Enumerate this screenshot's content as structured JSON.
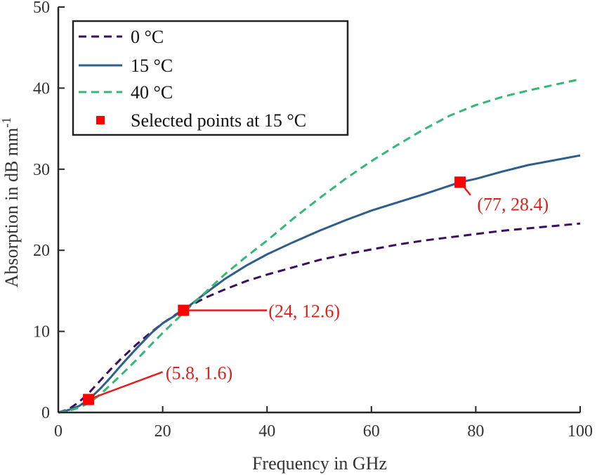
{
  "chart_data": {
    "type": "line",
    "xlabel": "Frequency in GHz",
    "ylabel": "Absorption in dB mm",
    "ylabel_superscript": "-1",
    "xlim": [
      0,
      100
    ],
    "ylim": [
      0,
      50
    ],
    "xticks": [
      "0",
      "20",
      "40",
      "60",
      "80",
      "100"
    ],
    "yticks": [
      "0",
      "10",
      "20",
      "30",
      "40",
      "50"
    ],
    "grid": false,
    "legend_position": "top-left",
    "series": [
      {
        "name": "0 °C",
        "style": "dashed",
        "color": "#3b0f5f",
        "x": [
          0,
          2,
          4,
          6,
          8,
          10,
          12,
          15,
          18,
          20,
          24,
          28,
          32,
          36,
          40,
          45,
          50,
          55,
          60,
          65,
          70,
          75,
          80,
          85,
          90,
          95,
          100
        ],
        "y": [
          0,
          0.4,
          1.3,
          2.5,
          3.9,
          5.3,
          6.6,
          8.4,
          10.0,
          11.0,
          12.7,
          14.1,
          15.2,
          16.2,
          17.0,
          17.9,
          18.8,
          19.5,
          20.1,
          20.7,
          21.2,
          21.6,
          22.0,
          22.4,
          22.7,
          23.0,
          23.3
        ]
      },
      {
        "name": "15 °C",
        "style": "solid",
        "color": "#2e5f8a",
        "x": [
          0,
          2,
          4,
          6,
          8,
          10,
          12,
          15,
          18,
          20,
          24,
          28,
          32,
          36,
          40,
          45,
          50,
          55,
          60,
          65,
          70,
          77,
          80,
          85,
          90,
          95,
          100
        ],
        "y": [
          0,
          0.3,
          0.8,
          1.7,
          2.9,
          4.3,
          5.8,
          7.9,
          9.9,
          11.0,
          12.6,
          14.6,
          16.5,
          18.1,
          19.5,
          21.0,
          22.4,
          23.7,
          24.9,
          25.9,
          26.9,
          28.4,
          28.8,
          29.7,
          30.5,
          31.1,
          31.7
        ]
      },
      {
        "name": "40 °C",
        "style": "dashed",
        "color": "#35b779",
        "x": [
          0,
          2,
          4,
          6,
          8,
          10,
          12,
          15,
          18,
          20,
          24,
          28,
          32,
          36,
          40,
          45,
          50,
          55,
          60,
          65,
          70,
          75,
          80,
          85,
          90,
          95,
          100
        ],
        "y": [
          0,
          0.2,
          0.6,
          1.2,
          2.2,
          3.4,
          4.6,
          6.5,
          8.5,
          9.8,
          12.3,
          14.7,
          17.1,
          19.2,
          21.2,
          23.9,
          26.4,
          28.8,
          31.0,
          33.0,
          34.9,
          36.6,
          37.9,
          38.9,
          39.7,
          40.4,
          41.1
        ]
      }
    ],
    "selected_points": {
      "name": "Selected points at 15 °C",
      "color": "#ff0000",
      "points": [
        {
          "x": 5.8,
          "y": 1.6,
          "label": "(5.8, 1.6)"
        },
        {
          "x": 24,
          "y": 12.6,
          "label": "(24, 12.6)"
        },
        {
          "x": 77,
          "y": 28.4,
          "label": "(77, 28.4)"
        }
      ]
    },
    "annotation_color": "#e0201a"
  }
}
